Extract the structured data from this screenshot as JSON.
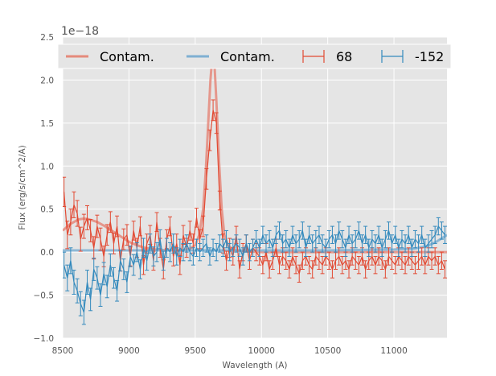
{
  "chart_data": {
    "type": "line",
    "title": "",
    "xlabel": "Wavelength (A)",
    "ylabel": "Flux (erg/s/cm^2/A)",
    "y_offset_label": "1e−18",
    "xlim": [
      8500,
      11400
    ],
    "ylim": [
      -1.0,
      2.5
    ],
    "x_ticks": [
      8500,
      9000,
      9500,
      10000,
      10500,
      11000
    ],
    "x_tick_labels": [
      "8500",
      "9000",
      "9500",
      "10000",
      "10500",
      "11000"
    ],
    "y_ticks": [
      -1.0,
      -0.5,
      0.0,
      0.5,
      1.0,
      1.5,
      2.0,
      2.5
    ],
    "y_tick_labels": [
      "−1.0",
      "−0.5",
      "0.0",
      "0.5",
      "1.0",
      "1.5",
      "2.0",
      "2.5"
    ],
    "grid": true,
    "legend_position": "top",
    "legend": [
      {
        "label": "Contam.",
        "kind": "line",
        "color": "#e58a7c"
      },
      {
        "label": "Contam.",
        "kind": "line",
        "color": "#7fb0d2"
      },
      {
        "label": "68",
        "kind": "errorbar",
        "color": "#e24a33"
      },
      {
        "label": "-152",
        "kind": "errorbar",
        "color": "#348abd"
      }
    ],
    "series": [
      {
        "name": "Contam.",
        "style": "contam",
        "color": "#e58a7c",
        "x": [
          8500,
          8560,
          8620,
          8660,
          8700,
          8760,
          8820,
          8880,
          8940,
          9000,
          9060,
          9120,
          9200,
          9300,
          9400,
          9460,
          9500,
          9530,
          9560,
          9580,
          9600,
          9615,
          9630,
          9645,
          9660,
          9680,
          9700,
          9720,
          9750,
          9800,
          9900,
          10000,
          10200,
          10500,
          10800,
          11100,
          11400
        ],
        "values": [
          0.25,
          0.33,
          0.38,
          0.39,
          0.38,
          0.35,
          0.3,
          0.24,
          0.18,
          0.12,
          0.08,
          0.05,
          0.03,
          0.02,
          0.02,
          0.04,
          0.08,
          0.2,
          0.5,
          0.95,
          1.55,
          2.0,
          2.3,
          2.2,
          1.75,
          1.05,
          0.5,
          0.2,
          0.07,
          0.02,
          0.01,
          0.0,
          0.0,
          0.0,
          0.0,
          0.0,
          0.0
        ]
      },
      {
        "name": "Contam.",
        "style": "contam",
        "color": "#7fb0d2",
        "x": [
          8500,
          8700,
          9000,
          9500,
          10000,
          10500,
          11000,
          11150,
          11250,
          11320,
          11400
        ],
        "values": [
          0.02,
          0.02,
          0.02,
          0.02,
          0.02,
          0.02,
          0.03,
          0.04,
          0.07,
          0.12,
          0.2
        ]
      },
      {
        "name": "68",
        "style": "errorbar",
        "color": "#e24a33",
        "x": [
          8510,
          8535,
          8560,
          8585,
          8610,
          8635,
          8660,
          8685,
          8710,
          8735,
          8760,
          8785,
          8810,
          8835,
          8860,
          8885,
          8910,
          8935,
          8960,
          8985,
          9010,
          9035,
          9060,
          9085,
          9110,
          9135,
          9160,
          9185,
          9210,
          9235,
          9260,
          9285,
          9310,
          9335,
          9360,
          9385,
          9410,
          9435,
          9460,
          9485,
          9510,
          9535,
          9560,
          9585,
          9610,
          9635,
          9660,
          9685,
          9710,
          9735,
          9760,
          9785,
          9810,
          9835,
          9860,
          9885,
          9910,
          9935,
          9960,
          9985,
          10010,
          10035,
          10060,
          10085,
          10110,
          10135,
          10160,
          10185,
          10210,
          10235,
          10260,
          10285,
          10310,
          10335,
          10360,
          10385,
          10410,
          10435,
          10460,
          10485,
          10510,
          10535,
          10560,
          10585,
          10610,
          10635,
          10660,
          10685,
          10710,
          10735,
          10760,
          10785,
          10810,
          10835,
          10860,
          10885,
          10910,
          10935,
          10960,
          10985,
          11010,
          11035,
          11060,
          11085,
          11110,
          11135,
          11160,
          11185,
          11210,
          11235,
          11260,
          11285,
          11310,
          11335,
          11360,
          11385
        ],
        "values": [
          0.7,
          0.2,
          0.35,
          0.55,
          0.45,
          0.15,
          0.3,
          0.4,
          0.25,
          0.05,
          0.3,
          0.15,
          -0.05,
          0.2,
          0.35,
          0.1,
          0.3,
          -0.1,
          0.15,
          0.2,
          -0.05,
          0.25,
          0.05,
          0.3,
          -0.15,
          0.1,
          0.2,
          -0.1,
          0.35,
          0.05,
          -0.2,
          0.15,
          0.3,
          -0.05,
          0.1,
          -0.15,
          0.2,
          0.05,
          0.25,
          0.1,
          0.4,
          0.15,
          0.3,
          0.85,
          1.3,
          1.65,
          1.5,
          0.6,
          0.1,
          -0.1,
          0.05,
          -0.05,
          0.2,
          -0.2,
          0.0,
          0.1,
          -0.1,
          0.05,
          0.0,
          -0.05,
          -0.15,
          0.0,
          -0.2,
          -0.1,
          0.05,
          -0.15,
          -0.05,
          -0.1,
          -0.2,
          -0.05,
          -0.15,
          -0.25,
          -0.1,
          -0.05,
          -0.15,
          -0.2,
          -0.05,
          -0.1,
          -0.15,
          -0.05,
          -0.1,
          -0.2,
          -0.1,
          -0.05,
          -0.15,
          -0.1,
          -0.2,
          -0.05,
          -0.1,
          -0.15,
          -0.05,
          -0.2,
          -0.1,
          -0.05,
          -0.15,
          -0.05,
          -0.1,
          -0.2,
          -0.05,
          -0.1,
          -0.15,
          -0.05,
          -0.1,
          -0.15,
          -0.05,
          -0.1,
          -0.15,
          -0.1,
          -0.05,
          -0.15,
          -0.05,
          -0.1,
          -0.05,
          -0.15,
          -0.1,
          -0.2
        ],
        "errors": [
          0.17,
          0.16,
          0.15,
          0.15,
          0.15,
          0.14,
          0.14,
          0.14,
          0.13,
          0.13,
          0.13,
          0.13,
          0.12,
          0.12,
          0.12,
          0.12,
          0.12,
          0.12,
          0.12,
          0.12,
          0.11,
          0.11,
          0.11,
          0.11,
          0.11,
          0.11,
          0.11,
          0.11,
          0.11,
          0.11,
          0.11,
          0.11,
          0.11,
          0.11,
          0.11,
          0.11,
          0.11,
          0.11,
          0.11,
          0.11,
          0.11,
          0.11,
          0.12,
          0.12,
          0.12,
          0.12,
          0.12,
          0.11,
          0.11,
          0.11,
          0.11,
          0.1,
          0.1,
          0.1,
          0.1,
          0.1,
          0.1,
          0.1,
          0.1,
          0.1,
          0.1,
          0.1,
          0.1,
          0.1,
          0.1,
          0.1,
          0.1,
          0.1,
          0.1,
          0.1,
          0.1,
          0.1,
          0.1,
          0.1,
          0.1,
          0.1,
          0.1,
          0.1,
          0.1,
          0.1,
          0.1,
          0.1,
          0.1,
          0.1,
          0.1,
          0.1,
          0.1,
          0.1,
          0.1,
          0.1,
          0.1,
          0.1,
          0.1,
          0.1,
          0.1,
          0.1,
          0.1,
          0.1,
          0.1,
          0.1,
          0.1,
          0.1,
          0.1,
          0.1,
          0.1,
          0.1,
          0.1,
          0.1,
          0.1,
          0.1,
          0.1,
          0.1,
          0.1,
          0.1,
          0.1,
          0.1
        ]
      },
      {
        "name": "-152",
        "style": "errorbar",
        "color": "#348abd",
        "x": [
          8510,
          8535,
          8560,
          8585,
          8610,
          8635,
          8660,
          8685,
          8710,
          8735,
          8760,
          8785,
          8810,
          8835,
          8860,
          8885,
          8910,
          8935,
          8960,
          8985,
          9010,
          9035,
          9060,
          9085,
          9110,
          9135,
          9160,
          9185,
          9210,
          9235,
          9260,
          9285,
          9310,
          9335,
          9360,
          9385,
          9410,
          9435,
          9460,
          9485,
          9510,
          9535,
          9560,
          9585,
          9610,
          9635,
          9660,
          9685,
          9710,
          9735,
          9760,
          9785,
          9810,
          9835,
          9860,
          9885,
          9910,
          9935,
          9960,
          9985,
          10010,
          10035,
          10060,
          10085,
          10110,
          10135,
          10160,
          10185,
          10210,
          10235,
          10260,
          10285,
          10310,
          10335,
          10360,
          10385,
          10410,
          10435,
          10460,
          10485,
          10510,
          10535,
          10560,
          10585,
          10610,
          10635,
          10660,
          10685,
          10710,
          10735,
          10760,
          10785,
          10810,
          10835,
          10860,
          10885,
          10910,
          10935,
          10960,
          10985,
          11010,
          11035,
          11060,
          11085,
          11110,
          11135,
          11160,
          11185,
          11210,
          11235,
          11260,
          11285,
          11310,
          11335,
          11360,
          11385
        ],
        "values": [
          -0.15,
          -0.3,
          -0.1,
          -0.35,
          -0.45,
          -0.6,
          -0.7,
          -0.35,
          -0.55,
          -0.2,
          -0.3,
          -0.5,
          -0.25,
          -0.4,
          -0.15,
          -0.3,
          -0.45,
          -0.1,
          -0.2,
          -0.35,
          -0.05,
          -0.15,
          0.0,
          -0.2,
          0.05,
          -0.1,
          0.1,
          -0.05,
          0.0,
          0.15,
          -0.1,
          0.05,
          0.0,
          0.1,
          -0.05,
          0.05,
          0.0,
          0.1,
          0.0,
          -0.05,
          0.05,
          0.0,
          0.05,
          0.1,
          -0.05,
          0.05,
          0.0,
          0.1,
          0.05,
          0.15,
          0.0,
          0.05,
          0.1,
          0.05,
          -0.05,
          0.1,
          0.0,
          0.05,
          0.15,
          0.05,
          0.2,
          0.1,
          0.15,
          0.05,
          0.2,
          0.25,
          0.1,
          0.15,
          0.05,
          0.2,
          0.1,
          0.15,
          0.25,
          0.05,
          0.2,
          0.1,
          0.15,
          0.2,
          0.1,
          0.05,
          0.15,
          0.2,
          0.1,
          0.25,
          0.15,
          0.05,
          0.2,
          0.1,
          0.15,
          0.25,
          0.1,
          0.2,
          0.05,
          0.15,
          0.1,
          0.2,
          0.05,
          0.15,
          0.25,
          0.1,
          0.2,
          0.05,
          0.15,
          0.1,
          0.2,
          0.05,
          0.15,
          0.1,
          0.2,
          0.05,
          0.1,
          0.15,
          0.2,
          0.3,
          0.25,
          0.2
        ],
        "errors": [
          0.15,
          0.15,
          0.15,
          0.14,
          0.14,
          0.14,
          0.14,
          0.14,
          0.13,
          0.13,
          0.13,
          0.13,
          0.13,
          0.13,
          0.13,
          0.12,
          0.12,
          0.12,
          0.12,
          0.12,
          0.12,
          0.12,
          0.11,
          0.11,
          0.11,
          0.11,
          0.11,
          0.11,
          0.11,
          0.11,
          0.11,
          0.11,
          0.11,
          0.11,
          0.1,
          0.1,
          0.1,
          0.1,
          0.1,
          0.1,
          0.1,
          0.1,
          0.1,
          0.1,
          0.1,
          0.1,
          0.1,
          0.1,
          0.1,
          0.1,
          0.1,
          0.1,
          0.1,
          0.1,
          0.1,
          0.1,
          0.1,
          0.1,
          0.1,
          0.1,
          0.1,
          0.1,
          0.1,
          0.1,
          0.1,
          0.1,
          0.1,
          0.1,
          0.1,
          0.1,
          0.1,
          0.1,
          0.1,
          0.1,
          0.1,
          0.1,
          0.1,
          0.1,
          0.1,
          0.1,
          0.1,
          0.1,
          0.1,
          0.1,
          0.1,
          0.1,
          0.1,
          0.1,
          0.1,
          0.1,
          0.1,
          0.1,
          0.1,
          0.1,
          0.1,
          0.1,
          0.1,
          0.1,
          0.1,
          0.1,
          0.1,
          0.1,
          0.1,
          0.1,
          0.1,
          0.1,
          0.1,
          0.1,
          0.1,
          0.1,
          0.1,
          0.1,
          0.1,
          0.1,
          0.1,
          0.1
        ]
      }
    ]
  }
}
